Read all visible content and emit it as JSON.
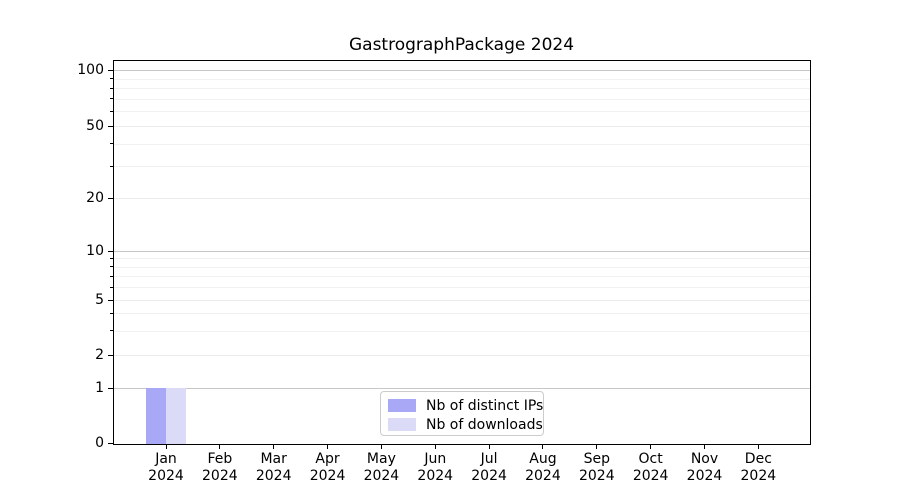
{
  "title": "GastrographPackage 2024",
  "chart_data": {
    "type": "bar",
    "title": "GastrographPackage 2024",
    "categories": [
      "Jan",
      "Feb",
      "Mar",
      "Apr",
      "May",
      "Jun",
      "Jul",
      "Aug",
      "Sep",
      "Oct",
      "Nov",
      "Dec"
    ],
    "year_label": "2024",
    "series": [
      {
        "name": "Nb of distinct IPs",
        "color": "#a8a8f6",
        "values": [
          1,
          0,
          0,
          0,
          0,
          0,
          0,
          0,
          0,
          0,
          0,
          0
        ]
      },
      {
        "name": "Nb of downloads",
        "color": "#dbdbf8",
        "values": [
          1,
          0,
          0,
          0,
          0,
          0,
          0,
          0,
          0,
          0,
          0,
          0
        ]
      }
    ],
    "xlabel": "",
    "ylabel": "",
    "yticks": [
      0,
      1,
      2,
      5,
      10,
      20,
      50,
      100
    ],
    "yticks_minor": [
      3,
      4,
      6,
      7,
      8,
      9,
      30,
      40,
      60,
      70,
      80,
      90
    ],
    "ylim": [
      0,
      113
    ],
    "yscale": "symlog",
    "grid": "horizontal major and minor gridlines",
    "legend_position": "lower center",
    "axis_color": "#000000",
    "grid_decade_color": "#c7c7c7",
    "grid_mid_color": "#ebebeb",
    "grid_minor_color": "#f1f1f1"
  }
}
